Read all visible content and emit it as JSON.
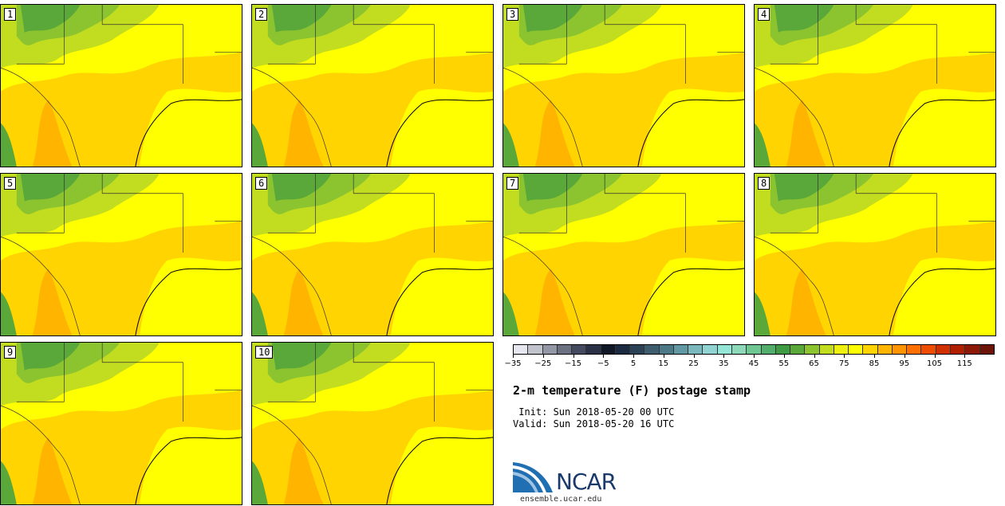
{
  "panels": [
    {
      "label": "1"
    },
    {
      "label": "2"
    },
    {
      "label": "3"
    },
    {
      "label": "4"
    },
    {
      "label": "5"
    },
    {
      "label": "6"
    },
    {
      "label": "7"
    },
    {
      "label": "8"
    },
    {
      "label": "9"
    },
    {
      "label": "10"
    }
  ],
  "colorbar": {
    "colors": [
      "#e6e6ee",
      "#c0c2cc",
      "#9396a4",
      "#6b7082",
      "#434a60",
      "#2a3046",
      "#101828",
      "#1b2a40",
      "#2a4156",
      "#3d5c6e",
      "#4d7888",
      "#6298a4",
      "#7ab8be",
      "#8fd4d2",
      "#96e6d8",
      "#8cd8b8",
      "#6ec692",
      "#52ae6a",
      "#3f9a44",
      "#5aa83a",
      "#8cc430",
      "#c2dc20",
      "#eef010",
      "#ffff00",
      "#ffd400",
      "#ffb400",
      "#ff9400",
      "#ff7000",
      "#ee4c00",
      "#d03000",
      "#b02000",
      "#8c1808",
      "#6c1408"
    ],
    "tick_labels": [
      "−35",
      "−25",
      "−15",
      "−5",
      "5",
      "15",
      "25",
      "35",
      "45",
      "55",
      "65",
      "75",
      "85",
      "95",
      "105",
      "115"
    ]
  },
  "title": "2-m temperature (F) postage stamp",
  "init_line": " Init: Sun 2018-05-20 00 UTC",
  "valid_line": "Valid: Sun 2018-05-20 16 UTC",
  "logo_text": "NCAR",
  "site": "ensemble.ucar.edu"
}
